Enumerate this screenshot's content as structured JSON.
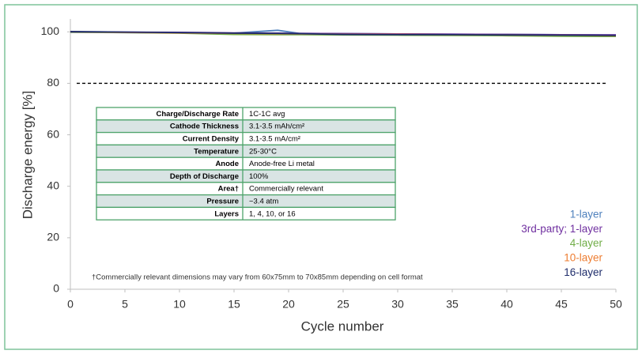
{
  "chart_data": {
    "type": "line",
    "x_label": "Cycle number",
    "y_label": "Discharge energy [%]",
    "x": [
      0,
      5,
      10,
      15,
      19,
      21,
      25,
      30,
      35,
      40,
      45,
      50
    ],
    "series": [
      {
        "name": "1-layer",
        "color": "#4f81bd",
        "values": [
          99.8,
          99.7,
          99.6,
          99.5,
          100.6,
          99.4,
          99.3,
          99.2,
          99.1,
          99.0,
          98.9,
          98.8
        ]
      },
      {
        "name": "3rd-party; 1-layer",
        "color": "#7030a0",
        "values": [
          100,
          99.9,
          99.8,
          99.6,
          99.5,
          99.4,
          99.3,
          99.2,
          99.1,
          99.0,
          98.9,
          98.8
        ]
      },
      {
        "name": "4-layer",
        "color": "#70ad47",
        "values": [
          99.9,
          99.7,
          99.5,
          99.0,
          98.9,
          98.9,
          98.8,
          98.7,
          98.6,
          98.5,
          98.3,
          98.2
        ]
      },
      {
        "name": "10-layer",
        "color": "#ed7d31",
        "values": [
          100,
          99.8,
          99.6,
          99.4,
          99.3,
          99.2,
          99.1,
          99.0,
          98.9,
          98.8,
          98.7,
          98.5
        ]
      },
      {
        "name": "16-layer",
        "color": "#1f2d6b",
        "values": [
          100.1,
          99.9,
          99.7,
          99.5,
          99.4,
          99.3,
          99.0,
          98.9,
          98.9,
          98.8,
          98.7,
          98.6
        ]
      }
    ],
    "reference_line": 80,
    "xlim": [
      0,
      50
    ],
    "xticks": [
      0,
      5,
      10,
      15,
      20,
      25,
      30,
      35,
      40,
      45,
      50
    ],
    "ylim": [
      0,
      105
    ],
    "yticks": [
      0,
      20,
      40,
      60,
      80,
      100
    ],
    "grid": false,
    "table": {
      "rows": [
        [
          "Charge/Discharge Rate",
          "1C-1C avg"
        ],
        [
          "Cathode Thickness",
          "3.1-3.5 mAh/cm²"
        ],
        [
          "Current Density",
          "3.1-3.5 mA/cm²"
        ],
        [
          "Temperature",
          "25-30°C"
        ],
        [
          "Anode",
          "Anode-free Li metal"
        ],
        [
          "Depth of Discharge",
          "100%"
        ],
        [
          "Area†",
          "Commercially relevant"
        ],
        [
          "Pressure",
          "~3.4 atm"
        ],
        [
          "Layers",
          "1, 4, 10, or 16"
        ]
      ]
    },
    "footnote": "†Commercially relevant dimensions may vary from 60x75mm to 70x85mm depending on cell format"
  }
}
